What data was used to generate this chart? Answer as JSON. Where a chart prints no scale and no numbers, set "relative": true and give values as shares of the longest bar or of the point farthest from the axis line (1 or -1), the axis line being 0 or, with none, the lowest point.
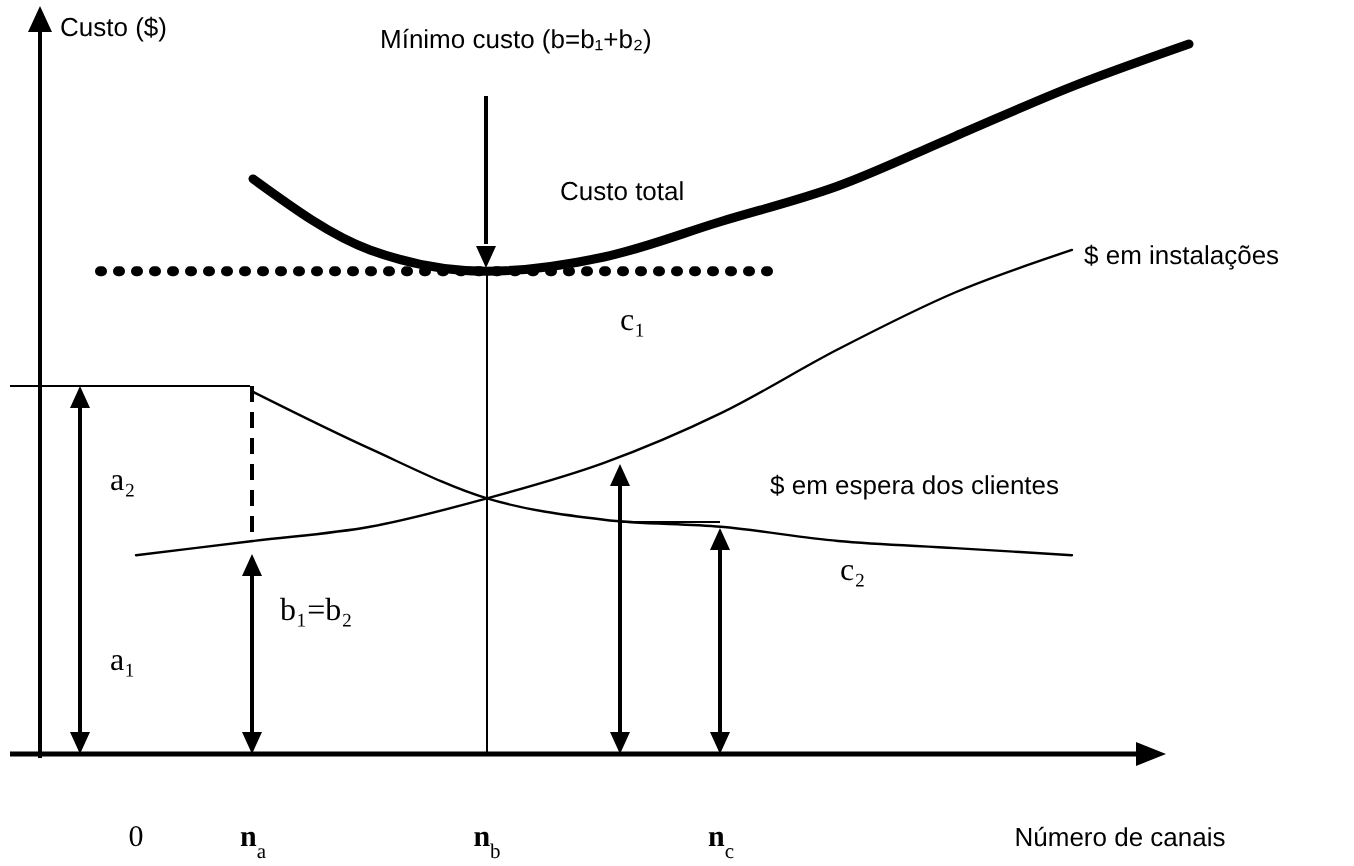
{
  "chart_data": {
    "type": "line",
    "relative": true,
    "xlabel": "Número de canais",
    "ylabel": "Custo ($)",
    "categories": [
      "0",
      "n$_{a}$",
      null,
      "n$_{b}$",
      null,
      "n$_{c}$",
      null,
      null,
      null,
      null
    ],
    "series": [
      {
        "name": "Custo total",
        "color": "#000000",
        "values": [
          null,
          0.81,
          0.71,
          0.68,
          0.7,
          0.75,
          0.8,
          0.87,
          0.94,
          1
        ]
      },
      {
        "name": "$ em instalações",
        "color": "#000000",
        "values": [
          0.28,
          0.3,
          0.32,
          0.36,
          0.41,
          0.48,
          0.57,
          0.65,
          0.71,
          null
        ]
      },
      {
        "name": "$ em espera dos clientes",
        "color": "#000000",
        "values": [
          null,
          0.51,
          0.43,
          0.36,
          0.33,
          0.32,
          0.3,
          0.29,
          0.28,
          null
        ]
      }
    ],
    "ref_lines": [
      {
        "axis": "y",
        "value": 0.68,
        "line_style": "dotted",
        "color": "#000000"
      },
      {
        "axis": "x",
        "value": "n$_{b}$",
        "color": "#000000"
      }
    ],
    "annotations": [
      "Mínimo custo (b=b₁+b₂)",
      "a₁",
      "a₂",
      "b₁=b₂",
      "c₁",
      "c₂"
    ],
    "tick_labels": "x",
    "marker": "none",
    "line_style": "solid"
  }
}
